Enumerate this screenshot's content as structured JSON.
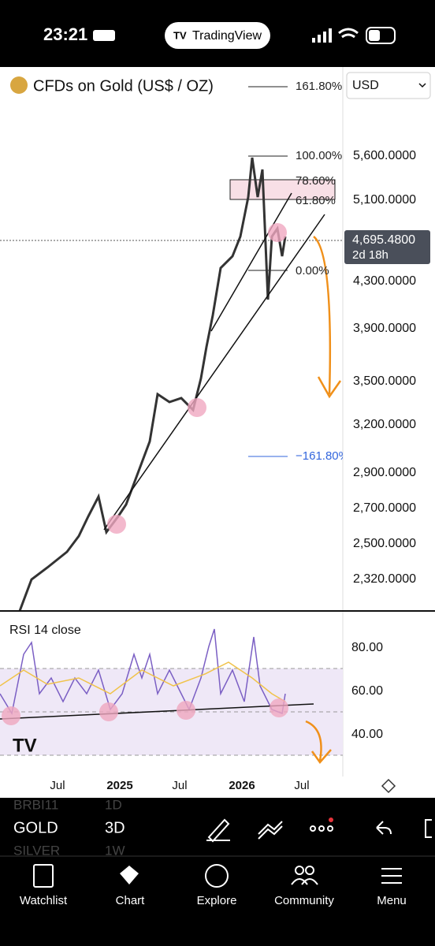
{
  "status_bar": {
    "time": "23:21",
    "app_badge": "TradingView"
  },
  "header": {
    "symbol_title": "CFDs on Gold (US$ / OZ)",
    "currency": "USD"
  },
  "price_axis": {
    "labels": [
      "5,600.0000",
      "5,100.0000",
      "4,300.0000",
      "3,900.0000",
      "3,500.0000",
      "3,200.0000",
      "2,900.0000",
      "2,700.0000",
      "2,500.0000",
      "2,320.0000"
    ],
    "current_price": "4,695.4800",
    "countdown": "2d 18h"
  },
  "fib_levels": [
    "161.80%",
    "100.00%",
    "78.60%",
    "61.80%",
    "0.00%",
    "−161.80%"
  ],
  "rsi": {
    "title": "RSI 14 close",
    "axis_labels": [
      "80.00",
      "60.00",
      "40.00"
    ]
  },
  "time_axis": [
    "Jul",
    "2025",
    "Jul",
    "2026",
    "Jul"
  ],
  "toolbar": {
    "symbols": [
      "BRBI11",
      "GOLD",
      "SILVER"
    ],
    "intervals": [
      "1D",
      "3D",
      "1W"
    ]
  },
  "tabs": [
    "Watchlist",
    "Chart",
    "Explore",
    "Community",
    "Menu"
  ]
}
